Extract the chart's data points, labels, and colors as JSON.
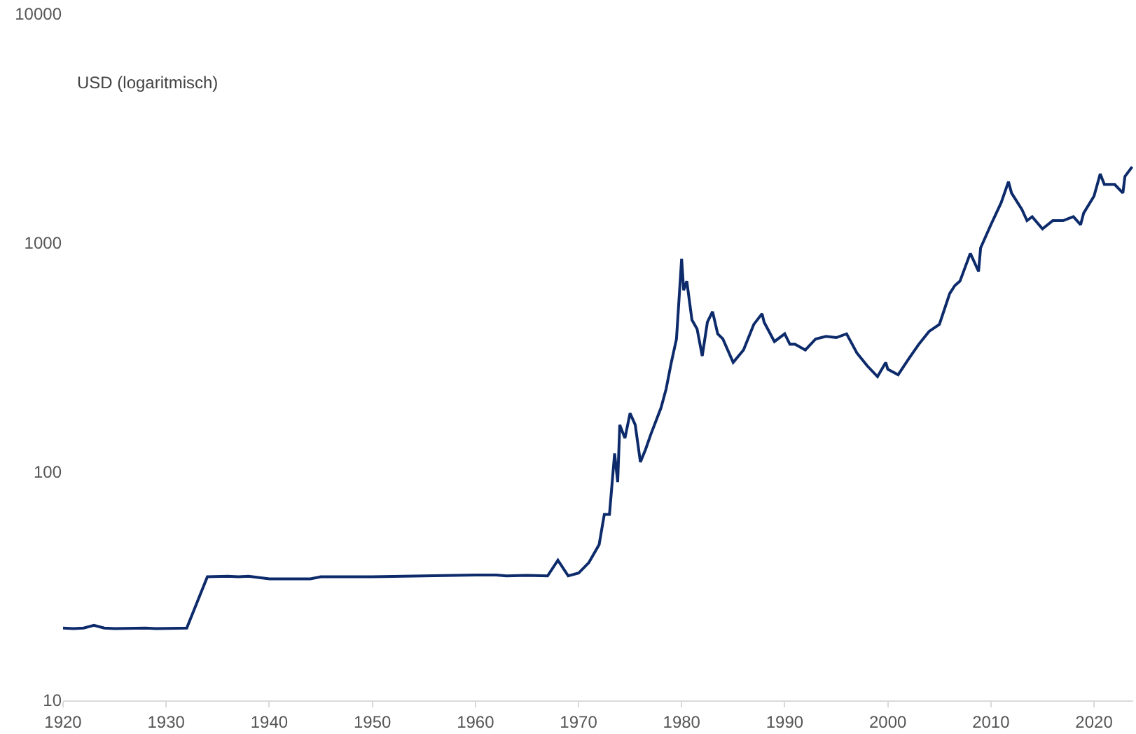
{
  "chart_data": {
    "type": "line",
    "ylabel": "USD (logaritmisch)",
    "log": true,
    "grid": false,
    "legend": false,
    "marker": "none",
    "line_style": "solid",
    "xlim": [
      1920,
      2023.8
    ],
    "xticks": [
      1920,
      1930,
      1940,
      1950,
      1960,
      1970,
      1980,
      1990,
      2000,
      2010,
      2020
    ],
    "ylim": [
      10,
      10000
    ],
    "yticks": [
      10,
      100,
      1000,
      10000
    ],
    "series": [
      {
        "color": "#0d2b6b",
        "x": [
          1920,
          1921,
          1922,
          1923,
          1924,
          1925,
          1928,
          1929,
          1932,
          1934,
          1936,
          1937,
          1938,
          1940,
          1944,
          1945,
          1950,
          1960,
          1962,
          1963,
          1965,
          1967,
          1968,
          1969,
          1970,
          1971,
          1972,
          1972.5,
          1973,
          1973.5,
          1973.8,
          1974,
          1974.5,
          1975,
          1975.5,
          1976,
          1976.5,
          1977,
          1978,
          1978.5,
          1979,
          1979.5,
          1980,
          1980.2,
          1980.5,
          1981,
          1981.5,
          1982,
          1982.5,
          1983,
          1983.5,
          1984,
          1985,
          1986,
          1987,
          1987.8,
          1988,
          1989,
          1990,
          1990.5,
          1991,
          1992,
          1993,
          1994,
          1995,
          1996,
          1997,
          1998,
          1999,
          1999.8,
          2000,
          2001,
          2002,
          2003,
          2004,
          2005,
          2006,
          2006.5,
          2007,
          2008,
          2008.8,
          2009,
          2010,
          2011,
          2011.7,
          2012,
          2013,
          2013.5,
          2014,
          2015,
          2016,
          2017,
          2018,
          2018.7,
          2019,
          2020,
          2020.6,
          2021,
          2022,
          2022.8,
          2023,
          2023.7
        ],
        "values": [
          20.7,
          20.6,
          20.7,
          21.3,
          20.7,
          20.6,
          20.7,
          20.6,
          20.7,
          34.7,
          34.9,
          34.7,
          34.9,
          34,
          34,
          34.7,
          34.7,
          35.3,
          35.3,
          35,
          35.2,
          35,
          41,
          35,
          36,
          40,
          48,
          65,
          65,
          120,
          90,
          160,
          140,
          180,
          160,
          110,
          125,
          145,
          190,
          230,
          300,
          380,
          850,
          620,
          680,
          460,
          420,
          320,
          450,
          500,
          400,
          380,
          300,
          340,
          440,
          490,
          450,
          370,
          400,
          360,
          360,
          340,
          380,
          390,
          385,
          400,
          330,
          290,
          260,
          300,
          280,
          265,
          310,
          360,
          410,
          440,
          600,
          650,
          680,
          900,
          750,
          950,
          1200,
          1500,
          1850,
          1650,
          1400,
          1250,
          1300,
          1150,
          1250,
          1250,
          1300,
          1200,
          1350,
          1600,
          2000,
          1800,
          1800,
          1650,
          1950,
          2150
        ]
      }
    ]
  }
}
